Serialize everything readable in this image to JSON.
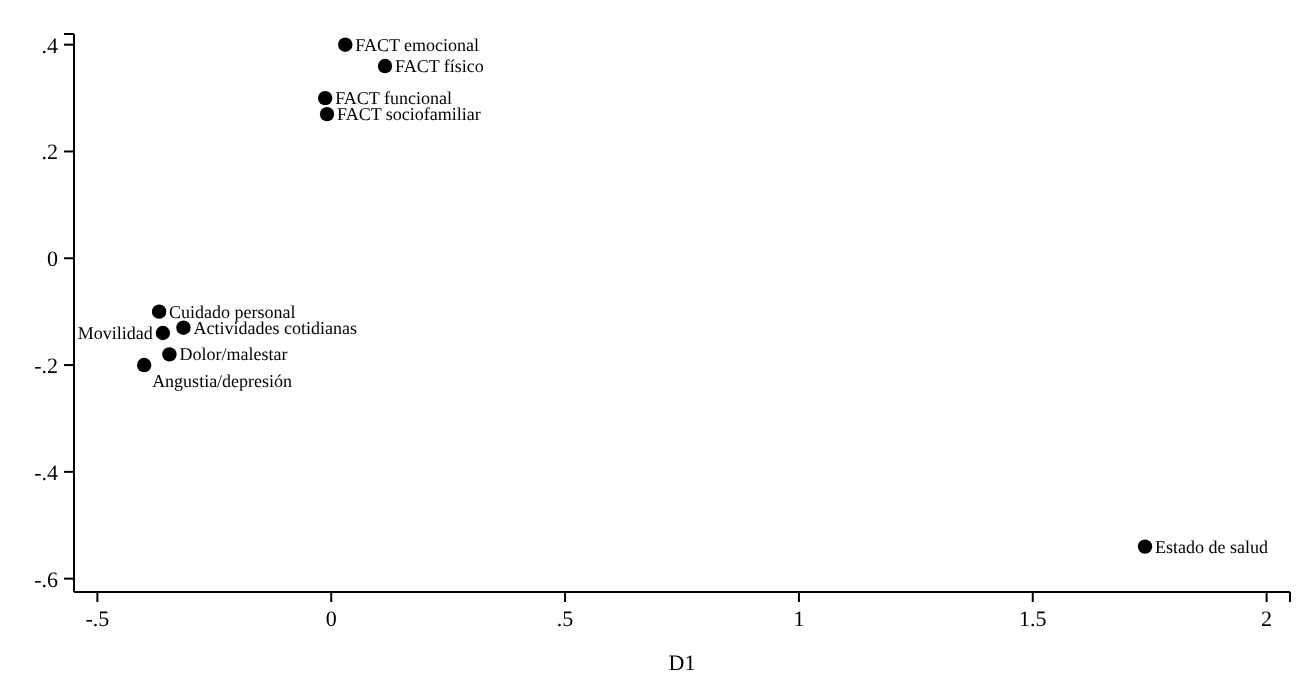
{
  "chart_data": {
    "type": "scatter",
    "xlabel": "D1",
    "x": [
      0.03,
      0.115,
      -0.013,
      -0.009,
      -0.368,
      -0.36,
      -0.316,
      -0.346,
      -0.4,
      1.74
    ],
    "values": [
      0.4,
      0.36,
      0.3,
      0.27,
      -0.1,
      -0.14,
      -0.13,
      -0.18,
      -0.2,
      -0.54
    ],
    "color": "#000000",
    "marker": "circle",
    "xlim": [
      -0.55,
      2.05
    ],
    "ylim": [
      -0.625,
      0.42
    ],
    "xticks": [
      {
        "value": -0.5,
        "label": "-.5"
      },
      {
        "value": 0,
        "label": "0"
      },
      {
        "value": 0.5,
        "label": ".5"
      },
      1,
      1.5,
      2,
      {
        "value": 2.05,
        "label": null
      }
    ],
    "yticks": [
      {
        "value": -0.6,
        "label": "-.6"
      },
      {
        "value": -0.4,
        "label": "-.4"
      },
      {
        "value": -0.2,
        "label": "-.2"
      },
      {
        "value": 0,
        "label": "0"
      },
      {
        "value": 0.2,
        "label": ".2"
      },
      {
        "value": 0.4,
        "label": ".4"
      },
      {
        "value": 0.42,
        "label": null
      }
    ],
    "grid": false,
    "annotations": [
      {
        "text": "FACT emocional",
        "x": 0.03,
        "y": 0.4
      },
      {
        "text": "FACT físico",
        "x": 0.115,
        "y": 0.36
      },
      {
        "text": "FACT funcional",
        "x": -0.013,
        "y": 0.3
      },
      {
        "text": "FACT sociofamiliar",
        "x": -0.009,
        "y": 0.27
      },
      {
        "text": "Cuidado personal",
        "x": -0.368,
        "y": -0.1
      },
      {
        "text": "Movilidad",
        "x": -0.36,
        "y": -0.14
      },
      {
        "text": "Actividades cotidianas",
        "x": -0.316,
        "y": -0.13
      },
      {
        "text": "Dolor/malestar",
        "x": -0.346,
        "y": -0.18
      },
      {
        "text": "Angustia/depresión",
        "x": -0.4,
        "y": -0.2
      },
      {
        "text": "Estado de salud",
        "x": 1.74,
        "y": -0.54
      }
    ]
  }
}
